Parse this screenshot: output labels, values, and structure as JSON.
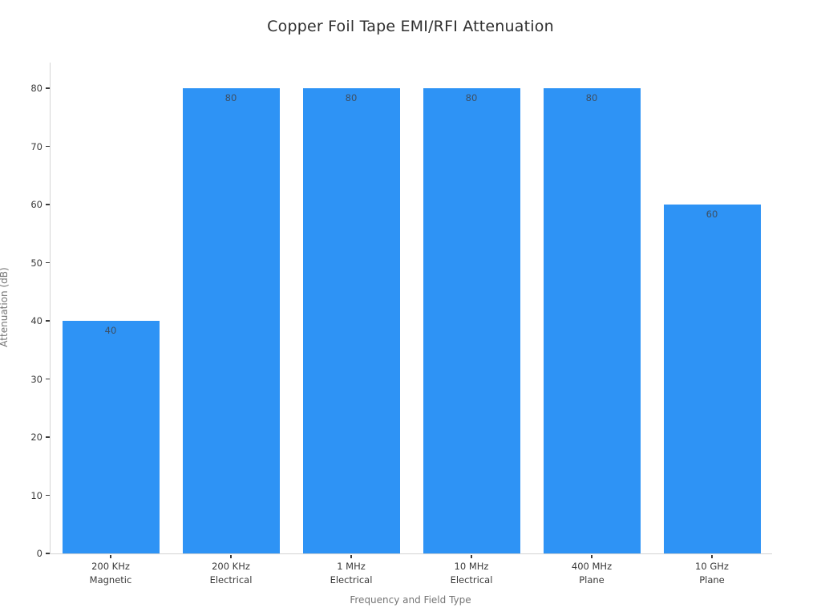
{
  "chart_data": {
    "type": "bar",
    "title": "Copper Foil Tape EMI/RFI Attenuation",
    "xlabel": "Frequency and Field Type",
    "ylabel": "Attenuation (dB)",
    "categories": [
      [
        "200 KHz",
        "Magnetic"
      ],
      [
        "200 KHz",
        "Electrical"
      ],
      [
        "1 MHz",
        "Electrical"
      ],
      [
        "10 MHz",
        "Electrical"
      ],
      [
        "400 MHz",
        "Plane"
      ],
      [
        "10 GHz",
        "Plane"
      ]
    ],
    "values": [
      40,
      80,
      80,
      80,
      80,
      60
    ],
    "value_labels": [
      "40",
      "80",
      "80",
      "80",
      "80",
      "60"
    ],
    "ylim": [
      0,
      80
    ],
    "yticks": [
      0,
      10,
      20,
      30,
      40,
      50,
      60,
      70,
      80
    ],
    "grid": false,
    "legend_position": "none",
    "bar_color": "#2e93f5",
    "bar_label_color": "#3d4f63",
    "axis_line_color": "#d4d4d4",
    "tick_label_color": "#3a3a3a",
    "axis_title_color": "#757575",
    "title_color": "#2f2f2f"
  }
}
